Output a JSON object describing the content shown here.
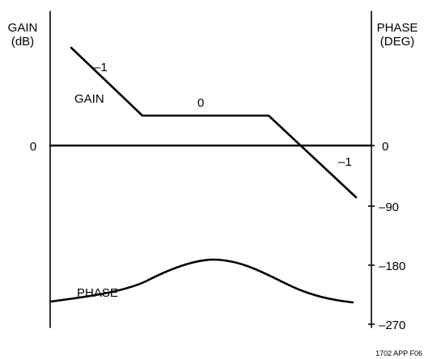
{
  "left_axis": {
    "label_line1": "GAIN",
    "label_line2": "(dB)",
    "zero_label": "0"
  },
  "right_axis": {
    "label_line1": "PHASE",
    "label_line2": "(DEG)",
    "ticks": [
      "0",
      "–90",
      "–180",
      "–270"
    ]
  },
  "gain_curve": {
    "label": "GAIN",
    "slope_labels": [
      "–1",
      "0",
      "–1"
    ]
  },
  "phase_curve": {
    "label": "PHASE"
  },
  "figure_id": "1702 APP F06",
  "colors": {
    "stroke": "#000000",
    "text": "#000000",
    "background": "#ffffff"
  }
}
